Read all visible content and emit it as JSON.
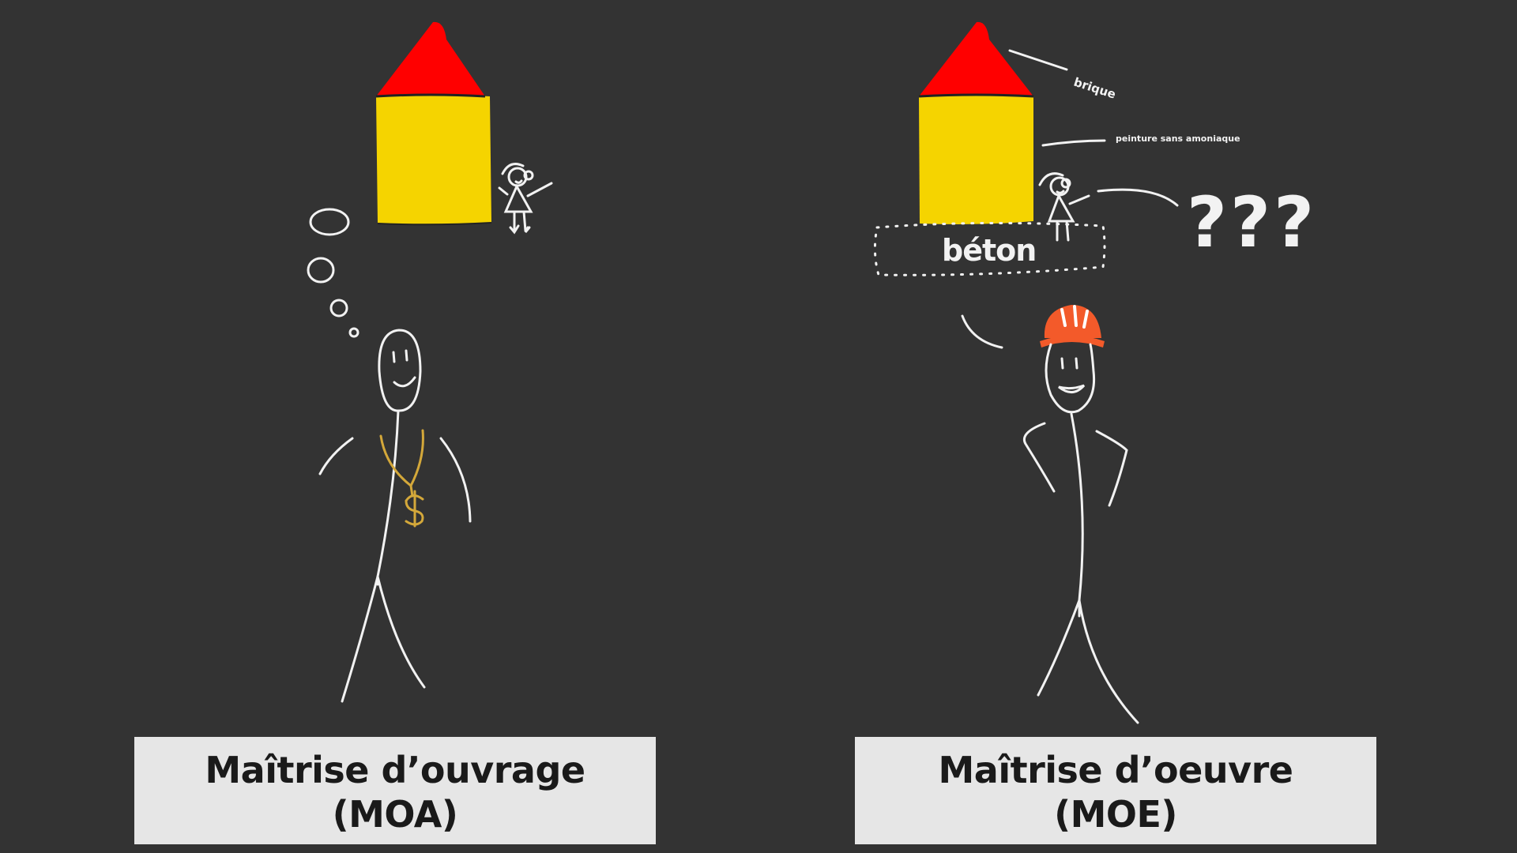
{
  "panels": {
    "moa": {
      "title_line1": "Maîtrise d’ouvrage",
      "title_line2": "(MOA)",
      "necklace_symbol": "$"
    },
    "moe": {
      "title_line1": "Maîtrise d’oeuvre",
      "title_line2": "(MOE)",
      "labels": {
        "roof": "brique",
        "walls": "peinture sans amoniaque",
        "foundation": "béton",
        "question": "???"
      }
    }
  },
  "colors": {
    "background": "#333333",
    "roof": "#ff0000",
    "walls": "#f5d400",
    "chalk": "#f2f2f2",
    "gold": "#d4a83a",
    "helmet": "#f35a2a",
    "caption_bg": "#e6e6e6",
    "caption_text": "#1a1a1a"
  },
  "icons": [
    "house-icon",
    "girl-figure-icon",
    "thought-bubble-icon",
    "stick-figure-icon",
    "hard-hat-icon",
    "dollar-necklace-icon"
  ]
}
